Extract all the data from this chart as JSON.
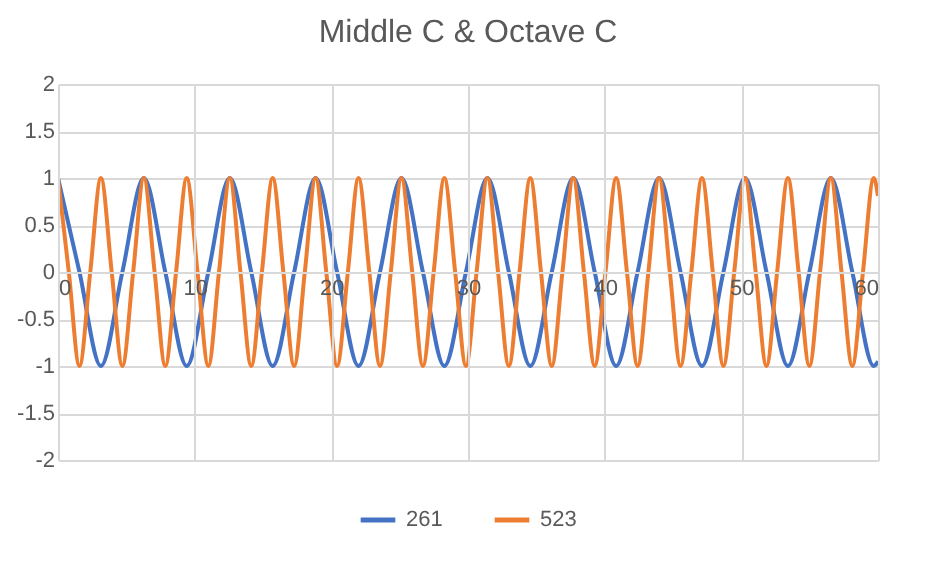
{
  "chart_data": {
    "type": "line",
    "title": "Middle C & Octave C",
    "xlim": [
      0,
      60
    ],
    "xticks": [
      0,
      10,
      20,
      30,
      40,
      50,
      60
    ],
    "ylim": [
      -2,
      2
    ],
    "yticks": [
      -2,
      -1.5,
      -1,
      -0.5,
      0,
      0.5,
      1,
      1.5,
      2
    ],
    "grid": true,
    "legend": "bottom",
    "marker": "none",
    "line_style": "solid",
    "series": [
      {
        "name": "261",
        "color": "#4472c4",
        "x": [
          0,
          1.57,
          3.14,
          4.71,
          6.28,
          7.85,
          9.42,
          11,
          12.57,
          14.14,
          15.71,
          17.28,
          18.85,
          20.42,
          21.99,
          23.56,
          25.13,
          26.7,
          28.27,
          29.85,
          31.42,
          32.99,
          34.56,
          36.13,
          37.7,
          39.27,
          40.84,
          42.41,
          43.98,
          45.55,
          47.12,
          48.69,
          50.27,
          51.84,
          53.41,
          54.98,
          56.55,
          58.12,
          59.69,
          60
        ],
        "values": [
          1,
          0,
          -1,
          0,
          1,
          0,
          -1,
          0,
          1,
          0,
          -1,
          0,
          1,
          0,
          -1,
          0,
          1,
          0,
          -1,
          0,
          1,
          0,
          -1,
          0,
          1,
          0,
          -1,
          0,
          1,
          0,
          -1,
          0,
          1,
          0,
          -1,
          0,
          1,
          0,
          -1,
          -0.95
        ]
      },
      {
        "name": "523",
        "color": "#ed7d31",
        "x": [
          0,
          0.79,
          1.57,
          2.36,
          3.14,
          3.93,
          4.71,
          5.5,
          6.28,
          7.07,
          7.85,
          8.64,
          9.42,
          10.21,
          11,
          11.78,
          12.57,
          13.35,
          14.14,
          14.92,
          15.71,
          16.49,
          17.28,
          18.06,
          18.85,
          19.63,
          20.42,
          21.21,
          21.99,
          22.78,
          23.56,
          24.35,
          25.13,
          25.92,
          26.7,
          27.49,
          28.27,
          29.06,
          29.85,
          30.63,
          31.42,
          32.2,
          32.99,
          33.77,
          34.56,
          35.34,
          36.13,
          36.91,
          37.7,
          38.48,
          39.27,
          40.06,
          40.84,
          41.63,
          42.41,
          43.2,
          43.98,
          44.77,
          45.55,
          46.34,
          47.12,
          47.91,
          48.69,
          49.48,
          50.27,
          51.05,
          51.84,
          52.62,
          53.41,
          54.19,
          54.98,
          55.76,
          56.55,
          57.33,
          58.12,
          58.9,
          59.69,
          60
        ],
        "values": [
          1,
          0,
          -1,
          0,
          1,
          0,
          -1,
          0,
          1,
          0,
          -1,
          0,
          1,
          0,
          -1,
          0,
          1,
          0,
          -1,
          0,
          1,
          0,
          -1,
          0,
          1,
          0,
          -1,
          0,
          1,
          0,
          -1,
          0,
          1,
          0,
          -1,
          0,
          1,
          0,
          -1,
          0,
          1,
          0,
          -1,
          0,
          1,
          0,
          -1,
          0,
          1,
          0,
          -1,
          0,
          1,
          0,
          -1,
          0,
          1,
          0,
          -1,
          0,
          1,
          0,
          -1,
          0,
          1,
          0,
          -1,
          0,
          1,
          0,
          -1,
          0,
          1,
          0,
          -1,
          0,
          1,
          0.81
        ]
      }
    ]
  }
}
